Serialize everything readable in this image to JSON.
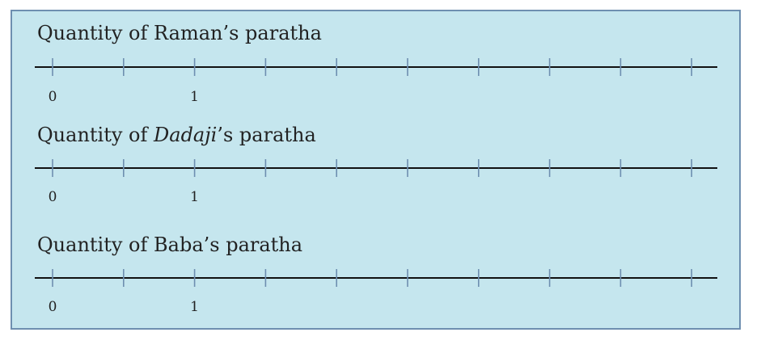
{
  "sections": [
    {
      "title_pre": "Quantity of ",
      "title_italic": "",
      "title_post": "Raman’s paratha",
      "labels": [
        {
          "value": 0,
          "text": "0"
        },
        {
          "value": 1,
          "text": "1"
        }
      ]
    },
    {
      "title_pre": "Quantity of ",
      "title_italic": "Dadaji",
      "title_post": "’s paratha",
      "labels": [
        {
          "value": 0,
          "text": "0"
        },
        {
          "value": 1,
          "text": "1"
        }
      ]
    },
    {
      "title_pre": "Quantity of ",
      "title_italic": "",
      "title_post": "Baba’s paratha",
      "labels": [
        {
          "value": 0,
          "text": "0"
        },
        {
          "value": 1,
          "text": "1"
        }
      ]
    }
  ],
  "number_line": {
    "start_value": 0,
    "tick_step": 0.5,
    "tick_count": 10
  },
  "colors": {
    "panel_fill": "#c5e6ee",
    "panel_border": "#6e8fb0",
    "axis": "#111111",
    "ticks": "#6e8fb0"
  }
}
